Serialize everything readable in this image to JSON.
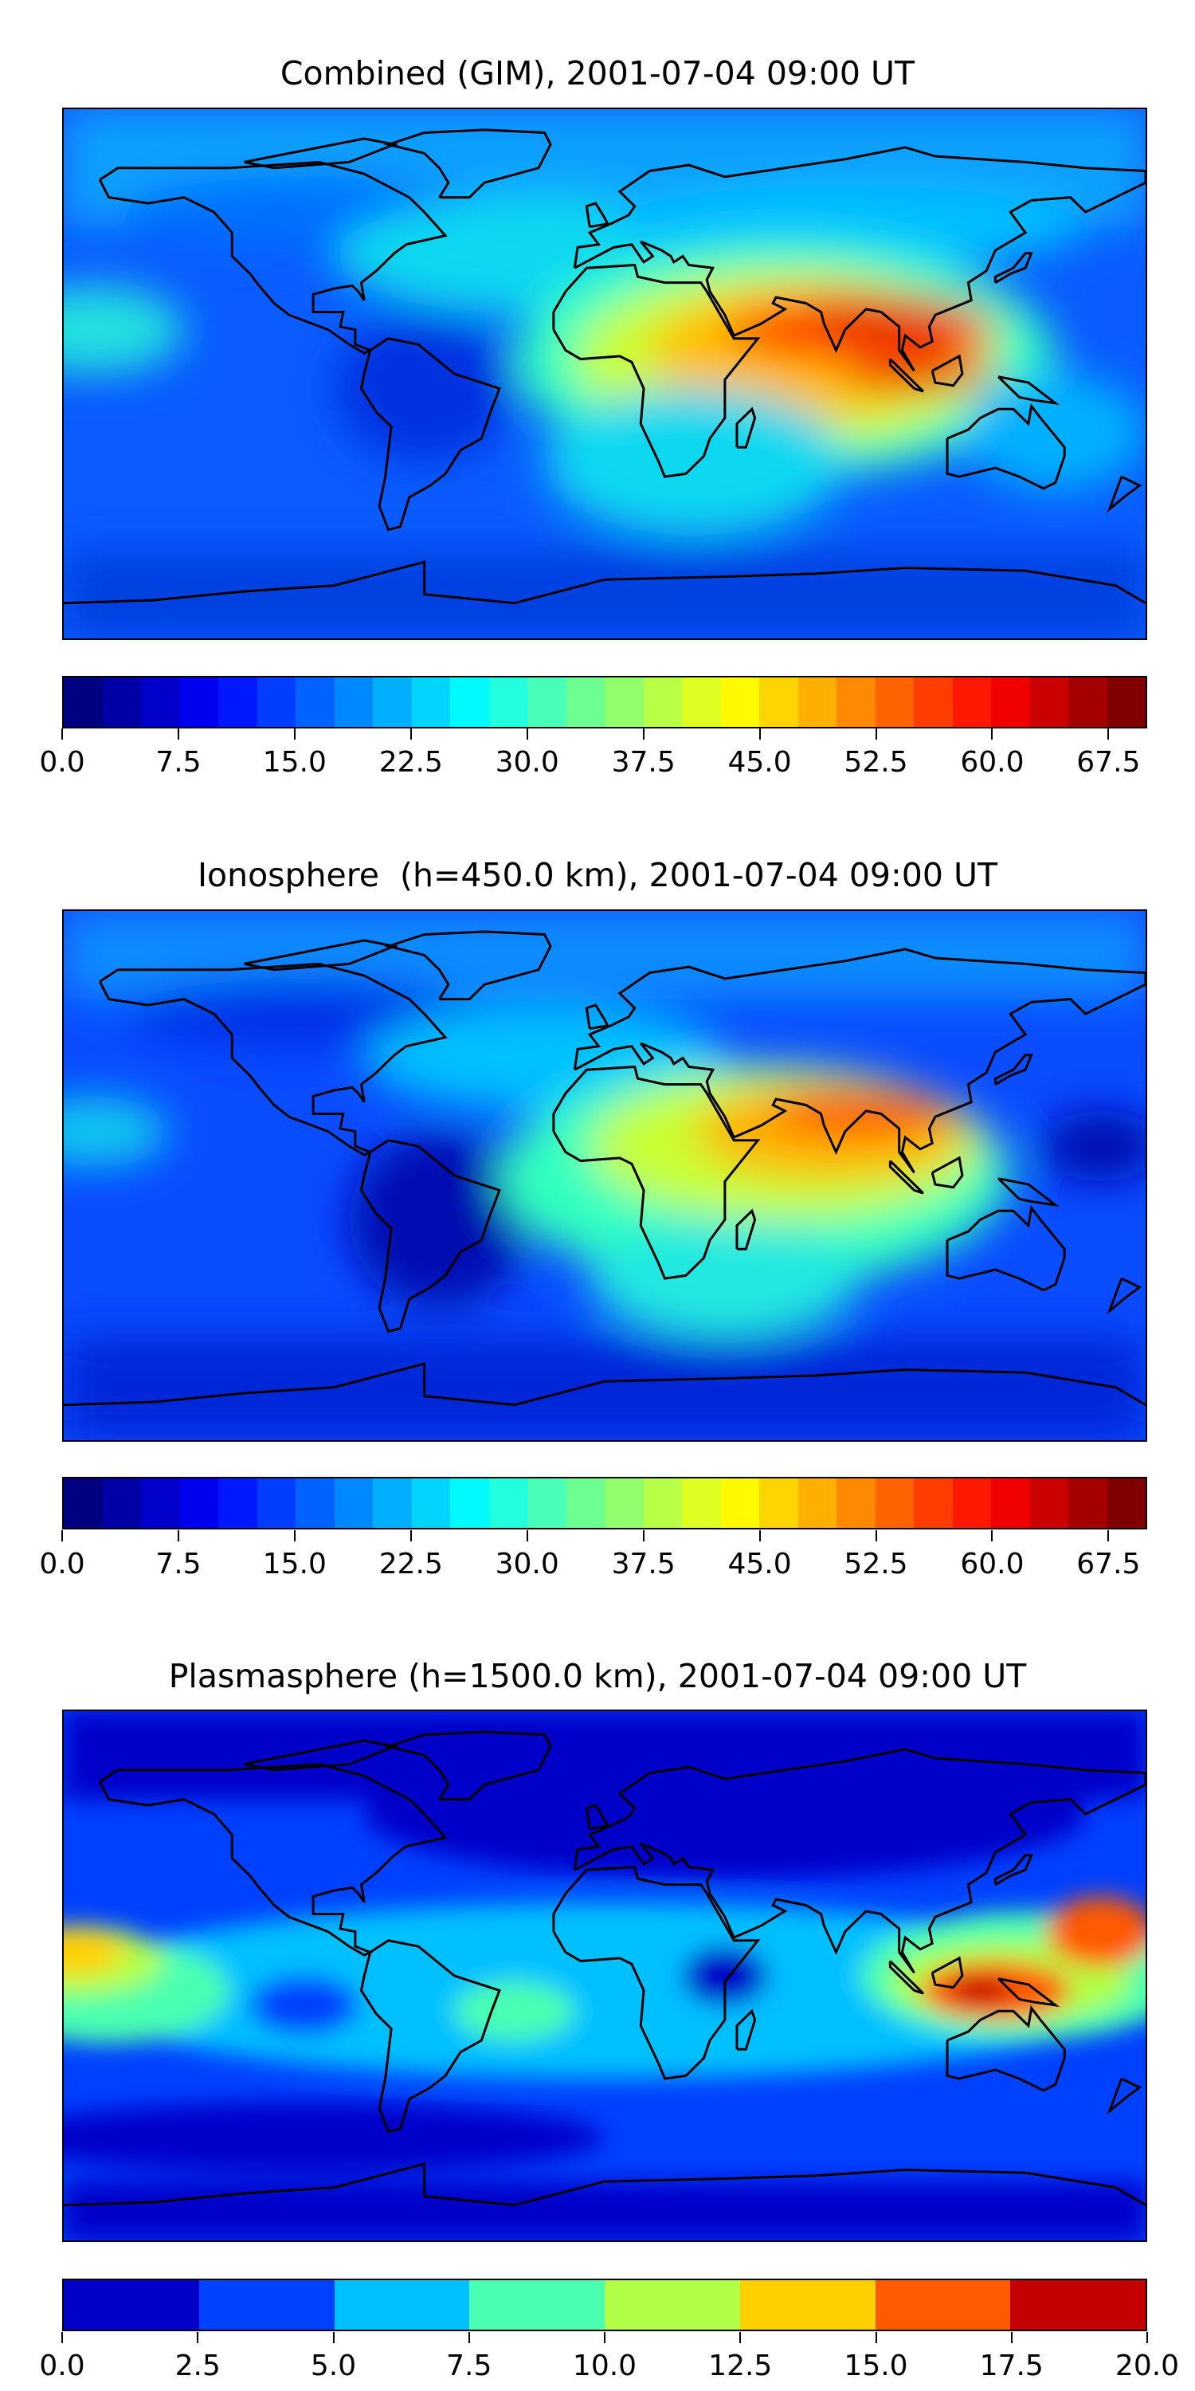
{
  "chart_data": [
    {
      "type": "heatmap",
      "title": "Combined (GIM), 2001-07-04 09:00 UT",
      "colorbar": {
        "range": [
          0.0,
          70.0
        ],
        "level_step": 2.5,
        "colormap": "jet",
        "ticks": [
          "0.0",
          "7.5",
          "15.0",
          "22.5",
          "30.0",
          "37.5",
          "45.0",
          "52.5",
          "60.0",
          "67.5"
        ]
      }
    },
    {
      "type": "heatmap",
      "title": "Ionosphere  (h=450.0 km), 2001-07-04 09:00 UT",
      "colorbar": {
        "range": [
          0.0,
          70.0
        ],
        "level_step": 2.5,
        "colormap": "jet",
        "ticks": [
          "0.0",
          "7.5",
          "15.0",
          "22.5",
          "30.0",
          "37.5",
          "45.0",
          "52.5",
          "60.0",
          "67.5"
        ]
      }
    },
    {
      "type": "heatmap",
      "title": "Plasmasphere (h=1500.0 km), 2001-07-04 09:00 UT",
      "colorbar": {
        "range": [
          0.0,
          20.0
        ],
        "level_step": 2.5,
        "colormap": "jet",
        "ticks": [
          "0.0",
          "2.5",
          "5.0",
          "7.5",
          "10.0",
          "12.5",
          "15.0",
          "17.5",
          "20.0"
        ],
        "colors": [
          "#0000c8",
          "#0040ff",
          "#00c0ff",
          "#4affb0",
          "#b0ff46",
          "#ffd000",
          "#ff5a00",
          "#c40000"
        ]
      }
    }
  ]
}
